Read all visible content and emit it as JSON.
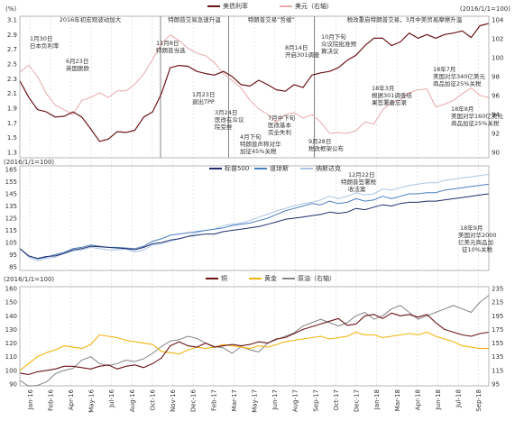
{
  "chart_data": [
    {
      "type": "line",
      "panel": "top",
      "unit_left": "(%)",
      "unit_right": "(2016/1/1=100)",
      "ylim_left": [
        1.3,
        3.1
      ],
      "ylim_right": [
        90,
        104
      ],
      "yticks_left": [
        "3.1",
        "2.9",
        "2.7",
        "2.5",
        "2.3",
        "2.1",
        "1.9",
        "1.7",
        "1.5",
        "1.3"
      ],
      "yticks_right": [
        "104",
        "102",
        "100",
        "98",
        "96",
        "94",
        "92",
        "90"
      ],
      "legend": [
        "美债利率",
        "美元（右轴）"
      ],
      "colors": [
        "#6b1418",
        "#e8a9ab"
      ],
      "phases": [
        "2016年初宏观波动加大",
        "特朗普交易急速升温",
        "特朗普交易“哲缓”",
        "税改重启特朗普交易，3月中美贸易摩擦升温"
      ],
      "annotations": [
        "1月30日",
        "日本负利率",
        "6月23日",
        "英国脱欧",
        "11月8日",
        "特朗普当选",
        "1月23日",
        "退出TPP",
        "3月24日",
        "医改在众议",
        "院受挫",
        "4月下旬",
        "特朗普声称对华",
        "加征45%关税",
        "7月中下旬",
        "医改基本",
        "完全失利",
        "8月14日",
        "开启301调查",
        "9月28日",
        "税改框架公布",
        "10月下旬",
        "众议院批准预",
        "算决议",
        "18年3月",
        "根据301调查结",
        "果签署备忘录",
        "18年7月",
        "美国对华340亿美元",
        "商品加征25%关税",
        "18年8月",
        "美国对华160亿美元",
        "商品加征25%关税"
      ],
      "series": [
        {
          "name": "美债利率",
          "axis": "left",
          "values": [
            2.27,
            2.05,
            1.88,
            1.85,
            1.78,
            1.79,
            1.85,
            1.78,
            1.62,
            1.45,
            1.48,
            1.58,
            1.57,
            1.6,
            1.78,
            1.85,
            2.1,
            2.45,
            2.48,
            2.47,
            2.4,
            2.37,
            2.35,
            2.4,
            2.33,
            2.22,
            2.2,
            2.28,
            2.22,
            2.15,
            2.13,
            2.22,
            2.18,
            2.35,
            2.38,
            2.4,
            2.45,
            2.55,
            2.62,
            2.75,
            2.85,
            2.85,
            2.75,
            2.8,
            2.92,
            2.85,
            2.9,
            2.85,
            2.9,
            2.92,
            2.95,
            2.86,
            3.02,
            3.05
          ]
        },
        {
          "name": "美元（右轴）",
          "axis": "right",
          "values": [
            98.5,
            99.2,
            98.0,
            96.2,
            95.0,
            94.5,
            94.0,
            95.5,
            95.8,
            96.3,
            95.8,
            96.5,
            96.5,
            97.2,
            98.3,
            99.8,
            101.5,
            102.4,
            101.8,
            101.0,
            100.5,
            100.2,
            99.5,
            98.3,
            97.6,
            96.8,
            95.5,
            94.6,
            94.0,
            93.2,
            94.0,
            94.2,
            93.6,
            94.0,
            93.2,
            92.0,
            92.1,
            92.0,
            92.3,
            93.2,
            93.0,
            94.5,
            95.3,
            95.5,
            96.3,
            96.6,
            96.7,
            94.8,
            95.1,
            95.5,
            96.2,
            96.8,
            96.0,
            95.8
          ]
        }
      ]
    },
    {
      "type": "line",
      "panel": "middle",
      "unit_left": "(2016/1/1=100)",
      "ylim": [
        85,
        165
      ],
      "yticks": [
        "165",
        "155",
        "145",
        "135",
        "125",
        "115",
        "105",
        "95",
        "85"
      ],
      "legend": [
        "标普500",
        "道琼斯",
        "纳斯达克"
      ],
      "colors": [
        "#1f2d6b",
        "#4a7fbf",
        "#a9c4e4"
      ],
      "annotations": [
        "12月22日",
        "特朗普签署税",
        "收法案",
        "18年9月",
        "美国对华2000",
        "亿美元商品加",
        "征10%关税"
      ],
      "series": [
        {
          "name": "标普500",
          "values": [
            100.0,
            94.0,
            92.0,
            93.5,
            94.0,
            96.0,
            99.0,
            100.0,
            102.0,
            101.5,
            101.0,
            100.5,
            100.0,
            99.0,
            101.0,
            104.0,
            105.0,
            107.0,
            108.0,
            110.0,
            111.0,
            112.0,
            112.0,
            114.0,
            115.0,
            116.0,
            117.0,
            118.0,
            120.0,
            122.0,
            124.0,
            125.0,
            126.0,
            127.0,
            128.0,
            130.0,
            129.0,
            130.0,
            133.0,
            132.0,
            134.0,
            136.0,
            135.0,
            137.0,
            138.0,
            138.0,
            139.0,
            139.0,
            140.0,
            141.0,
            142.0,
            143.0,
            144.0,
            145.0
          ]
        },
        {
          "name": "道琼斯",
          "values": [
            100.0,
            94.0,
            91.5,
            93.0,
            95.0,
            97.0,
            100.0,
            101.0,
            103.0,
            102.0,
            101.0,
            101.0,
            100.5,
            100.0,
            102.0,
            106.0,
            108.0,
            111.0,
            112.0,
            113.0,
            114.0,
            115.0,
            116.0,
            117.0,
            119.0,
            120.0,
            121.0,
            123.0,
            125.0,
            128.0,
            131.0,
            133.0,
            135.0,
            137.0,
            136.0,
            139.0,
            137.0,
            138.0,
            141.0,
            139.0,
            140.0,
            143.0,
            141.0,
            143.0,
            145.0,
            145.0,
            146.0,
            146.0,
            148.0,
            149.0,
            150.0,
            151.0,
            152.0,
            153.0
          ]
        },
        {
          "name": "纳斯达克",
          "values": [
            100.0,
            93.0,
            90.0,
            92.0,
            93.0,
            96.0,
            98.0,
            99.0,
            101.0,
            100.0,
            99.0,
            99.0,
            99.5,
            97.0,
            99.0,
            103.0,
            104.0,
            106.0,
            108.0,
            110.0,
            113.0,
            115.0,
            116.0,
            119.0,
            120.0,
            121.0,
            123.0,
            126.0,
            128.0,
            131.0,
            133.0,
            135.0,
            137.0,
            138.0,
            140.0,
            143.0,
            141.0,
            143.0,
            146.0,
            144.0,
            145.0,
            149.0,
            148.0,
            150.0,
            152.0,
            153.0,
            154.0,
            154.0,
            156.0,
            157.0,
            158.0,
            159.0,
            160.0,
            161.0
          ]
        }
      ]
    },
    {
      "type": "line",
      "panel": "bottom",
      "unit_left": "(2016/1/1=100)",
      "ylim_left": [
        90,
        160
      ],
      "ylim_right": [
        95,
        235
      ],
      "yticks_left": [
        "160",
        "150",
        "140",
        "130",
        "120",
        "110",
        "100",
        "90"
      ],
      "yticks_right": [
        "235",
        "215",
        "195",
        "175",
        "155",
        "135",
        "115",
        "95"
      ],
      "legend": [
        "铜",
        "黄金",
        "原油（右轴）"
      ],
      "colors": [
        "#6b1418",
        "#f2b40d",
        "#858585"
      ],
      "xticks": [
        "Jan-16",
        "Feb-16",
        "Apr-16",
        "May-16",
        "Jul-16",
        "Aug-16",
        "Oct-16",
        "Nov-16",
        "Dec-16",
        "Feb-17",
        "Mar-17",
        "May-17",
        "Jun-17",
        "Aug-17",
        "Sep-17",
        "Oct-17",
        "Dec-17",
        "Jan-18",
        "Mar-18",
        "Apr-18",
        "Jun-18",
        "Jul-18",
        "Sep-18"
      ],
      "series": [
        {
          "name": "铜",
          "axis": "left",
          "values": [
            98,
            97,
            99,
            100,
            101,
            103,
            103,
            102,
            101,
            103,
            104,
            101,
            103,
            104,
            102,
            105,
            109,
            118,
            121,
            118,
            117,
            120,
            117,
            118,
            119,
            118,
            119,
            121,
            120,
            123,
            124,
            127,
            130,
            132,
            134,
            136,
            138,
            133,
            134,
            140,
            141,
            138,
            142,
            140,
            141,
            139,
            141,
            135,
            130,
            128,
            126,
            125,
            127,
            128
          ]
        },
        {
          "name": "黄金",
          "axis": "left",
          "values": [
            100,
            105,
            110,
            113,
            115,
            118,
            117,
            116,
            119,
            126,
            125,
            124,
            122,
            121,
            120,
            119,
            114,
            113,
            112,
            115,
            117,
            116,
            117,
            119,
            118,
            117,
            116,
            118,
            117,
            119,
            121,
            122,
            123,
            124,
            125,
            123,
            124,
            125,
            128,
            126,
            126,
            124,
            125,
            126,
            127,
            126,
            128,
            125,
            123,
            121,
            118,
            117,
            116,
            116
          ]
        },
        {
          "name": "原油（右轴）",
          "axis": "right",
          "values": [
            100,
            92,
            93,
            98,
            110,
            115,
            118,
            130,
            135,
            125,
            122,
            125,
            130,
            128,
            132,
            140,
            150,
            158,
            160,
            165,
            162,
            155,
            150,
            148,
            140,
            150,
            145,
            142,
            155,
            160,
            165,
            170,
            180,
            185,
            190,
            185,
            180,
            185,
            195,
            200,
            190,
            195,
            205,
            210,
            200,
            190,
            195,
            200,
            205,
            210,
            205,
            200,
            215,
            225
          ]
        }
      ]
    }
  ]
}
